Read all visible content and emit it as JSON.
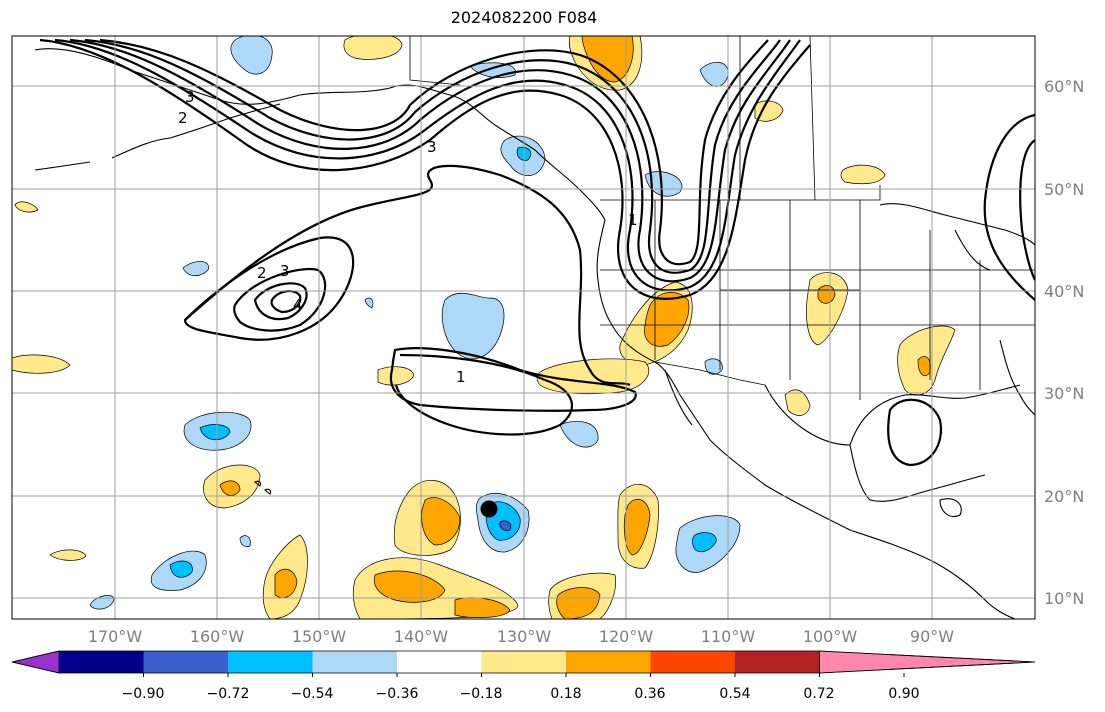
{
  "title": "2024082200 F084",
  "longitude_labels": [
    "170°W",
    "160°W",
    "150°W",
    "140°W",
    "130°W",
    "120°W",
    "110°W",
    "100°W",
    "90°W"
  ],
  "latitude_labels": [
    "60°N",
    "50°N",
    "40°N",
    "30°N",
    "20°N",
    "10°N"
  ],
  "contour_labels": [
    "3",
    "2",
    "3",
    "4",
    "2",
    "3",
    "1",
    "1"
  ],
  "colorbar": {
    "tick_labels": [
      "−0.90",
      "−0.72",
      "−0.54",
      "−0.36",
      "−0.18",
      "0.18",
      "0.36",
      "0.54",
      "0.72",
      "0.90"
    ],
    "colors": [
      "#9932cc",
      "#00008b",
      "#3a5fcd",
      "#00bfff",
      "#add8f7",
      "#ffffff",
      "#ffe98a",
      "#ffa500",
      "#ff4500",
      "#b22222",
      "#ff88aa"
    ]
  },
  "marker": {
    "label": ""
  }
}
